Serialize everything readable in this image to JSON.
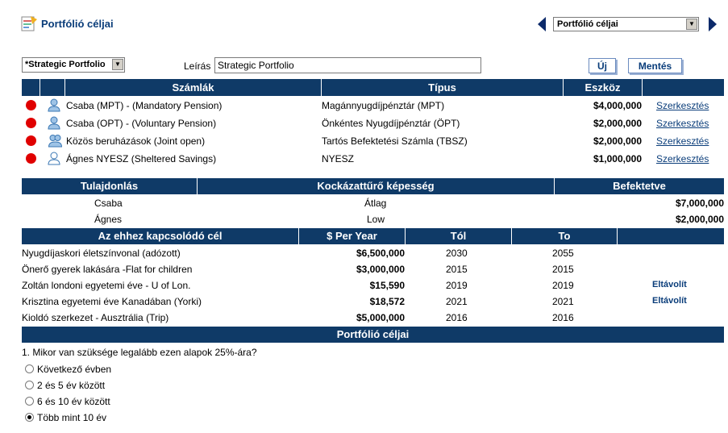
{
  "header": {
    "title": "Portfólió céljai",
    "selector_value": "Portfólió céljai",
    "logo_icon": "portfolio-document-icon",
    "prev_icon": "triangle-left-icon",
    "next_icon": "triangle-right-icon"
  },
  "toolbar": {
    "portfolio_select_value": "*Strategic Portfolio",
    "description_label": "Leírás",
    "description_value": "Strategic Portfolio",
    "new_label": "Új",
    "save_label": "Mentés"
  },
  "accounts": {
    "headers": [
      "Számlák",
      "Típus",
      "Eszköz"
    ],
    "rows": [
      {
        "name": "Csaba (MPT) - (Mandatory Pension)",
        "type": "Magánnyugdíjpénztár (MPT)",
        "asset": "$4,000,000",
        "action": "Szerkesztés",
        "owner_icon": "single-person-icon"
      },
      {
        "name": "Csaba (OPT) - (Voluntary Pension)",
        "type": "Önkéntes Nyugdíjpénztár (ÖPT)",
        "asset": "$2,000,000",
        "action": "Szerkesztés",
        "owner_icon": "single-person-icon"
      },
      {
        "name": "Közös beruházások (Joint open)",
        "type": "Tartós Befektetési Számla (TBSZ)",
        "asset": "$2,000,000",
        "action": "Szerkesztés",
        "owner_icon": "two-persons-icon"
      },
      {
        "name": "Ágnes NYESZ (Sheltered Savings)",
        "type": "NYESZ",
        "asset": "$1,000,000",
        "action": "Szerkesztés",
        "owner_icon": "person-outline-icon"
      }
    ]
  },
  "ownership": {
    "headers": [
      "Tulajdonlás",
      "Kockázattűrő képesség",
      "Befektetve"
    ],
    "rows": [
      {
        "owner": "Csaba",
        "risk": "Átlag",
        "invested": "$7,000,000"
      },
      {
        "owner": "Ágnes",
        "risk": "Low",
        "invested": "$2,000,000"
      }
    ]
  },
  "goals": {
    "headers": [
      "Az ehhez kapcsolódó cél",
      "$ Per Year",
      "Tól",
      "To",
      ""
    ],
    "rows": [
      {
        "name": "Nyugdíjaskori életszínvonal (adózott)",
        "per_year": "$6,500,000",
        "from": "2030",
        "to": "2055",
        "action": ""
      },
      {
        "name": "Önerő gyerek lakására -Flat for children",
        "per_year": "$3,000,000",
        "from": "2015",
        "to": "2015",
        "action": ""
      },
      {
        "name": "Zoltán londoni egyetemi éve - U of Lon.",
        "per_year": "$15,590",
        "from": "2019",
        "to": "2019",
        "action": "Eltávolít"
      },
      {
        "name": "Krisztina egyetemi éve Kanadában (Yorki)",
        "per_year": "$18,572",
        "from": "2021",
        "to": "2021",
        "action": "Eltávolít"
      },
      {
        "name": "Kioldó szerkezet - Ausztrália (Trip)",
        "per_year": "$5,000,000",
        "from": "2016",
        "to": "2016",
        "action": ""
      }
    ]
  },
  "objectives": {
    "header": "Portfólió céljai",
    "question": "1. Mikor van szüksége legalább ezen alapok 25%-ára?",
    "options": [
      "Következő évben",
      "2 és 5 év között",
      "6 és 10 év között",
      "Több mint 10 év"
    ],
    "selected_index": 3
  },
  "colors": {
    "header_bg": "#0f3a67",
    "accent_text": "#0a3d7a",
    "status_dot": "#e00000"
  }
}
